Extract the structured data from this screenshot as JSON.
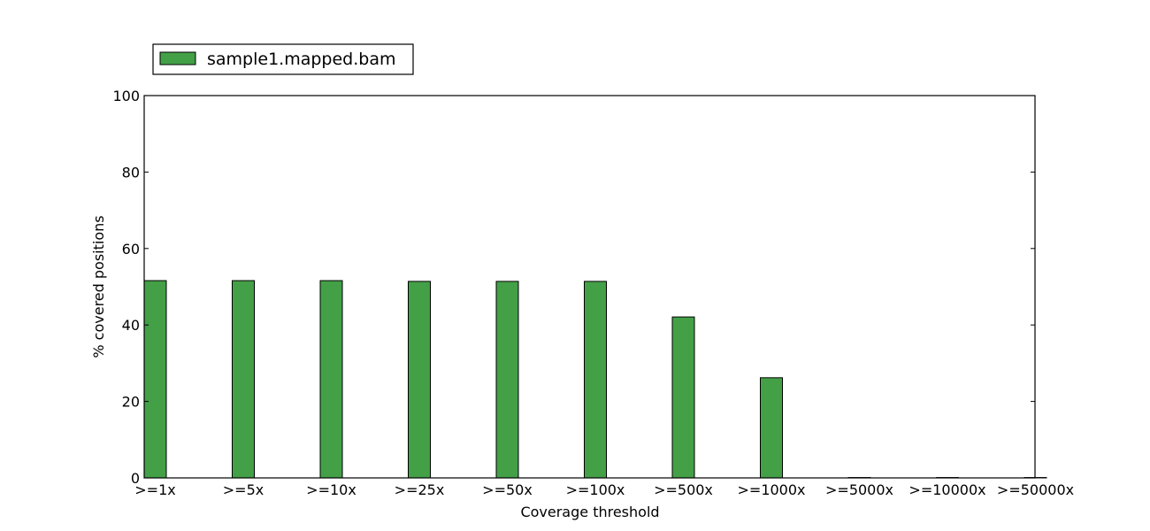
{
  "chart_data": {
    "type": "bar",
    "categories": [
      ">=1x",
      ">=5x",
      ">=10x",
      ">=25x",
      ">=50x",
      ">=100x",
      ">=500x",
      ">=1000x",
      ">=5000x",
      ">=10000x",
      ">=50000x"
    ],
    "series": [
      {
        "name": "sample1.mapped.bam",
        "color": "#43a047",
        "values": [
          51.6,
          51.6,
          51.6,
          51.4,
          51.4,
          51.4,
          42.1,
          26.2,
          0.1,
          0.1,
          0.1
        ]
      }
    ],
    "title": "",
    "xlabel": "Coverage threshold",
    "ylabel": "% covered positions",
    "ylim": [
      0,
      100
    ],
    "yticks": [
      0,
      20,
      40,
      60,
      80,
      100
    ],
    "grid": false,
    "legend_position": "top-left outside"
  }
}
